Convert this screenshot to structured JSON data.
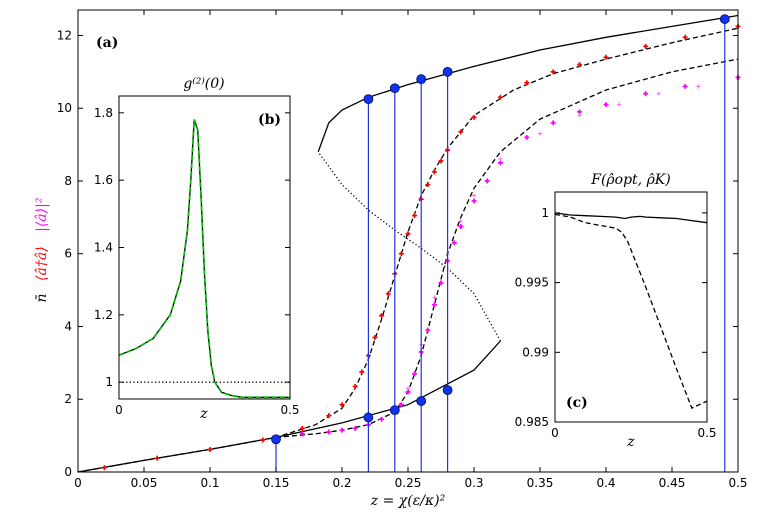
{
  "chart_data": [
    {
      "panel": "main",
      "type": "line",
      "panel_label": "(a)",
      "xlabel": "z = χ(ε/κ)²",
      "ylabel_parts": [
        {
          "text": "n̄",
          "color": "#000000"
        },
        {
          "text": "⟨â†â⟩",
          "color": "#ff0000"
        },
        {
          "text": "|⟨â⟩|²",
          "color": "#ff00ff"
        }
      ],
      "xlim": [
        0,
        0.5
      ],
      "ylim": [
        0,
        12.7
      ],
      "xticks": [
        "0",
        "0.05",
        "0.1",
        "0.15",
        "0.2",
        "0.25",
        "0.3",
        "0.35",
        "0.4",
        "0.45",
        "0.5"
      ],
      "yticks": [
        "0",
        "2",
        "4",
        "6",
        "8",
        "10",
        "12"
      ],
      "series": [
        {
          "name": "stable lower branch",
          "style": "solid",
          "color": "#000000",
          "x": [
            0,
            0.05,
            0.1,
            0.15,
            0.2,
            0.25,
            0.3,
            0.32
          ],
          "y": [
            0,
            0.32,
            0.62,
            0.95,
            1.35,
            1.85,
            2.8,
            3.6
          ]
        },
        {
          "name": "unstable branch",
          "style": "dotted",
          "color": "#000000",
          "x": [
            0.32,
            0.3,
            0.28,
            0.26,
            0.24,
            0.22,
            0.2,
            0.182
          ],
          "y": [
            3.6,
            4.9,
            5.6,
            6.15,
            6.65,
            7.2,
            7.9,
            8.8
          ]
        },
        {
          "name": "stable upper branch",
          "style": "solid",
          "color": "#000000",
          "x": [
            0.182,
            0.19,
            0.2,
            0.22,
            0.25,
            0.3,
            0.35,
            0.4,
            0.45,
            0.5
          ],
          "y": [
            8.8,
            9.6,
            9.95,
            10.3,
            10.65,
            11.15,
            11.6,
            11.95,
            12.25,
            12.55
          ]
        },
        {
          "name": "⟨â†â⟩ quantum",
          "style": "dashed",
          "color": "#000000",
          "x": [
            0,
            0.05,
            0.1,
            0.15,
            0.18,
            0.2,
            0.21,
            0.22,
            0.23,
            0.24,
            0.25,
            0.26,
            0.27,
            0.28,
            0.3,
            0.33,
            0.36,
            0.4,
            0.45,
            0.5
          ],
          "y": [
            0,
            0.32,
            0.62,
            0.95,
            1.3,
            1.75,
            2.3,
            3.1,
            4.2,
            5.4,
            6.6,
            7.6,
            8.3,
            8.9,
            9.8,
            10.5,
            10.95,
            11.35,
            11.8,
            12.2
          ]
        },
        {
          "name": "⟨â†â⟩ markers",
          "style": "markers",
          "color": "#ff0000",
          "x": [
            0.02,
            0.06,
            0.1,
            0.14,
            0.17,
            0.19,
            0.2,
            0.21,
            0.215,
            0.22,
            0.225,
            0.23,
            0.235,
            0.24,
            0.245,
            0.25,
            0.255,
            0.26,
            0.265,
            0.27,
            0.275,
            0.28,
            0.29,
            0.3,
            0.32,
            0.34,
            0.36,
            0.38,
            0.4,
            0.43,
            0.46,
            0.5
          ],
          "y": [
            0.12,
            0.38,
            0.62,
            0.88,
            1.2,
            1.55,
            1.85,
            2.35,
            2.75,
            3.2,
            3.7,
            4.3,
            4.9,
            5.45,
            6.0,
            6.55,
            7.05,
            7.5,
            7.9,
            8.25,
            8.55,
            8.85,
            9.35,
            9.75,
            10.3,
            10.7,
            11.0,
            11.2,
            11.4,
            11.7,
            11.95,
            12.25
          ]
        },
        {
          "name": "|⟨â⟩|² quantum",
          "style": "dashed",
          "color": "#000000",
          "x": [
            0.15,
            0.18,
            0.2,
            0.22,
            0.24,
            0.25,
            0.26,
            0.27,
            0.28,
            0.29,
            0.3,
            0.32,
            0.35,
            0.4,
            0.45,
            0.5
          ],
          "y": [
            0.95,
            1.05,
            1.15,
            1.3,
            1.65,
            2.2,
            3.2,
            4.6,
            6.0,
            7.0,
            7.8,
            8.8,
            9.7,
            10.5,
            11.0,
            11.35
          ]
        },
        {
          "name": "|⟨â⟩|² markers",
          "style": "markers",
          "color": "#ff00ff",
          "x": [
            0.15,
            0.17,
            0.19,
            0.2,
            0.21,
            0.22,
            0.23,
            0.24,
            0.245,
            0.25,
            0.255,
            0.26,
            0.265,
            0.27,
            0.275,
            0.28,
            0.285,
            0.29,
            0.3,
            0.31,
            0.32,
            0.34,
            0.36,
            0.38,
            0.4,
            0.43,
            0.46,
            0.5
          ],
          "y": [
            0.95,
            1.05,
            1.1,
            1.15,
            1.2,
            1.3,
            1.45,
            1.65,
            1.85,
            2.2,
            2.7,
            3.3,
            3.9,
            4.6,
            5.2,
            5.8,
            6.3,
            6.75,
            7.45,
            8.0,
            8.5,
            9.2,
            9.6,
            9.9,
            10.1,
            10.4,
            10.6,
            10.85
          ]
        },
        {
          "name": "|⟨â⟩|² semiclassical",
          "style": "markers-light",
          "color": "#ff66ff",
          "x": [
            0.25,
            0.26,
            0.27,
            0.28,
            0.29,
            0.3,
            0.32,
            0.35,
            0.38,
            0.41,
            0.44,
            0.47,
            0.5
          ],
          "y": [
            2.3,
            3.5,
            4.8,
            6.0,
            6.9,
            7.6,
            8.6,
            9.3,
            9.8,
            10.1,
            10.4,
            10.6,
            10.8
          ]
        }
      ],
      "vertical_lines_x": [
        0.15,
        0.22,
        0.24,
        0.26,
        0.28,
        0.49
      ],
      "highlight_points": [
        {
          "x": 0.15,
          "y": 0.9
        },
        {
          "x": 0.22,
          "y": 1.5
        },
        {
          "x": 0.22,
          "y": 10.25
        },
        {
          "x": 0.24,
          "y": 1.7
        },
        {
          "x": 0.24,
          "y": 10.55
        },
        {
          "x": 0.26,
          "y": 1.95
        },
        {
          "x": 0.26,
          "y": 10.8
        },
        {
          "x": 0.28,
          "y": 2.25
        },
        {
          "x": 0.28,
          "y": 11.0
        },
        {
          "x": 0.49,
          "y": 12.45
        }
      ]
    },
    {
      "panel": "inset-b",
      "type": "line",
      "title": "g⁽²⁾(0)",
      "panel_label": "(b)",
      "xlabel": "z",
      "xlim": [
        0,
        0.5
      ],
      "ylim": [
        0.95,
        1.85
      ],
      "xticks": [
        "0",
        "0.5"
      ],
      "yticks": [
        "1",
        "1.2",
        "1.4",
        "1.6",
        "1.8"
      ],
      "series": [
        {
          "name": "g2 exact",
          "style": "solid",
          "color": "#000000",
          "x": [
            0,
            0.05,
            0.1,
            0.15,
            0.18,
            0.2,
            0.21,
            0.22,
            0.23,
            0.24,
            0.25,
            0.26,
            0.27,
            0.28,
            0.3,
            0.33,
            0.36,
            0.4,
            0.45,
            0.5
          ],
          "y": [
            1.08,
            1.1,
            1.13,
            1.2,
            1.3,
            1.45,
            1.6,
            1.78,
            1.75,
            1.55,
            1.32,
            1.15,
            1.05,
            1.0,
            0.97,
            0.96,
            0.955,
            0.955,
            0.955,
            0.955
          ]
        },
        {
          "name": "g2 approx",
          "style": "dashed",
          "color": "#00bb00",
          "x": [
            0,
            0.05,
            0.1,
            0.15,
            0.18,
            0.2,
            0.21,
            0.22,
            0.23,
            0.24,
            0.25,
            0.26,
            0.27,
            0.28,
            0.3,
            0.33,
            0.36,
            0.4,
            0.45,
            0.5
          ],
          "y": [
            1.08,
            1.1,
            1.13,
            1.2,
            1.3,
            1.45,
            1.6,
            1.78,
            1.75,
            1.55,
            1.32,
            1.15,
            1.05,
            1.0,
            0.97,
            0.96,
            0.955,
            0.955,
            0.955,
            0.955
          ]
        },
        {
          "name": "g2 = 1 reference",
          "style": "dotted",
          "color": "#000000",
          "x": [
            0,
            0.5
          ],
          "y": [
            1,
            1
          ]
        }
      ]
    },
    {
      "panel": "inset-c",
      "type": "line",
      "title": "F(ρ̂opt, ρ̂K)",
      "panel_label": "(c)",
      "xlabel": "z",
      "xlim": [
        0,
        0.5
      ],
      "ylim": [
        0.985,
        1.0015
      ],
      "xticks": [
        "0",
        "0.5"
      ],
      "yticks": [
        "0.985",
        "0.99",
        "0.995",
        "1"
      ],
      "series": [
        {
          "name": "fidelity optimal",
          "style": "solid",
          "color": "#000000",
          "x": [
            0,
            0.05,
            0.1,
            0.15,
            0.2,
            0.23,
            0.25,
            0.28,
            0.3,
            0.35,
            0.4,
            0.45,
            0.5
          ],
          "y": [
            1.0,
            0.99985,
            0.9998,
            0.99975,
            0.9997,
            0.9996,
            0.9997,
            0.99975,
            0.9997,
            0.99965,
            0.9996,
            0.99945,
            0.9993
          ]
        },
        {
          "name": "fidelity Kerr",
          "style": "dashed",
          "color": "#000000",
          "x": [
            0,
            0.05,
            0.1,
            0.15,
            0.2,
            0.22,
            0.24,
            0.26,
            0.28,
            0.3,
            0.35,
            0.4,
            0.45,
            0.5
          ],
          "y": [
            0.9999,
            0.9997,
            0.9993,
            0.9991,
            0.9989,
            0.9986,
            0.9979,
            0.9968,
            0.9957,
            0.9946,
            0.9917,
            0.9888,
            0.986,
            0.9865
          ]
        }
      ]
    }
  ]
}
